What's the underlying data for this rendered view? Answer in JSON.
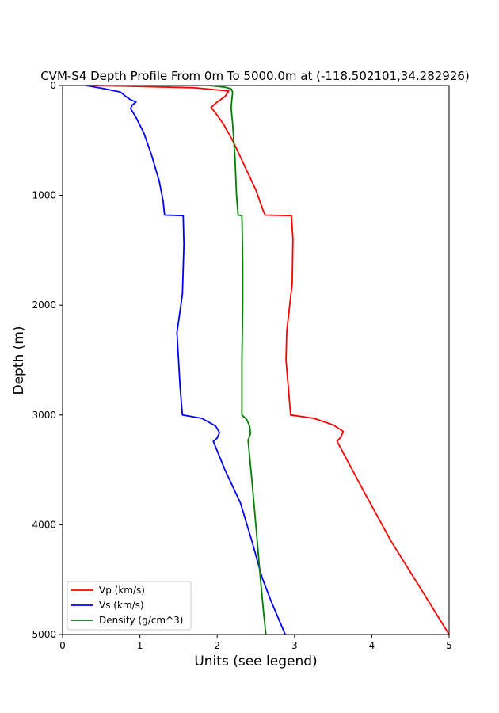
{
  "chart_data": {
    "type": "line",
    "title": "CVM-S4 Depth Profile From 0m To 5000.0m at (-118.502101,34.282926)",
    "xlabel": "Units (see legend)",
    "ylabel": "Depth (m)",
    "xlim": [
      0,
      5
    ],
    "ylim": [
      0,
      5000
    ],
    "y_inverted": true,
    "grid": false,
    "legend_position": "lower-left",
    "xticks": [
      "0",
      "1",
      "2",
      "3",
      "4",
      "5"
    ],
    "yticks": [
      "0",
      "1000",
      "2000",
      "3000",
      "4000",
      "5000"
    ],
    "series": [
      {
        "name": "Vp (km/s)",
        "color": "#ff0000",
        "points": [
          [
            0.3,
            0
          ],
          [
            0.8,
            5
          ],
          [
            1.7,
            20
          ],
          [
            2.15,
            50
          ],
          [
            2.1,
            100
          ],
          [
            2.0,
            150
          ],
          [
            1.92,
            200
          ],
          [
            1.98,
            250
          ],
          [
            2.08,
            350
          ],
          [
            2.2,
            500
          ],
          [
            2.3,
            650
          ],
          [
            2.4,
            800
          ],
          [
            2.5,
            950
          ],
          [
            2.6,
            1150
          ],
          [
            2.62,
            1180
          ],
          [
            2.96,
            1185
          ],
          [
            2.98,
            1400
          ],
          [
            2.97,
            1800
          ],
          [
            2.9,
            2240
          ],
          [
            2.89,
            2500
          ],
          [
            2.95,
            3000
          ],
          [
            3.25,
            3030
          ],
          [
            3.5,
            3090
          ],
          [
            3.63,
            3150
          ],
          [
            3.6,
            3200
          ],
          [
            3.55,
            3240
          ],
          [
            3.9,
            3700
          ],
          [
            4.25,
            4150
          ],
          [
            4.65,
            4600
          ],
          [
            5.0,
            5000
          ]
        ]
      },
      {
        "name": "Vs (km/s)",
        "color": "#0000ff",
        "points": [
          [
            0.3,
            0
          ],
          [
            0.55,
            30
          ],
          [
            0.75,
            60
          ],
          [
            0.82,
            100
          ],
          [
            0.88,
            130
          ],
          [
            0.95,
            150
          ],
          [
            0.9,
            180
          ],
          [
            0.88,
            210
          ],
          [
            0.95,
            290
          ],
          [
            1.05,
            430
          ],
          [
            1.15,
            630
          ],
          [
            1.25,
            870
          ],
          [
            1.3,
            1050
          ],
          [
            1.32,
            1180
          ],
          [
            1.56,
            1185
          ],
          [
            1.57,
            1450
          ],
          [
            1.55,
            1900
          ],
          [
            1.5,
            2150
          ],
          [
            1.48,
            2250
          ],
          [
            1.5,
            2500
          ],
          [
            1.52,
            2750
          ],
          [
            1.55,
            3000
          ],
          [
            1.8,
            3030
          ],
          [
            1.98,
            3100
          ],
          [
            2.03,
            3160
          ],
          [
            2.0,
            3210
          ],
          [
            1.95,
            3240
          ],
          [
            2.1,
            3500
          ],
          [
            2.3,
            3800
          ],
          [
            2.45,
            4150
          ],
          [
            2.58,
            4480
          ],
          [
            2.7,
            4700
          ],
          [
            2.88,
            5000
          ]
        ]
      },
      {
        "name": "Density (g/cm^3)",
        "color": "#008000",
        "points": [
          [
            1.9,
            0
          ],
          [
            2.1,
            15
          ],
          [
            2.18,
            30
          ],
          [
            2.2,
            60
          ],
          [
            2.19,
            130
          ],
          [
            2.18,
            200
          ],
          [
            2.2,
            350
          ],
          [
            2.23,
            650
          ],
          [
            2.25,
            1000
          ],
          [
            2.27,
            1180
          ],
          [
            2.32,
            1185
          ],
          [
            2.33,
            1600
          ],
          [
            2.33,
            2000
          ],
          [
            2.32,
            2500
          ],
          [
            2.32,
            3000
          ],
          [
            2.38,
            3040
          ],
          [
            2.42,
            3100
          ],
          [
            2.43,
            3170
          ],
          [
            2.4,
            3230
          ],
          [
            2.45,
            3600
          ],
          [
            2.5,
            4000
          ],
          [
            2.56,
            4500
          ],
          [
            2.6,
            4800
          ],
          [
            2.63,
            5000
          ]
        ]
      }
    ]
  }
}
